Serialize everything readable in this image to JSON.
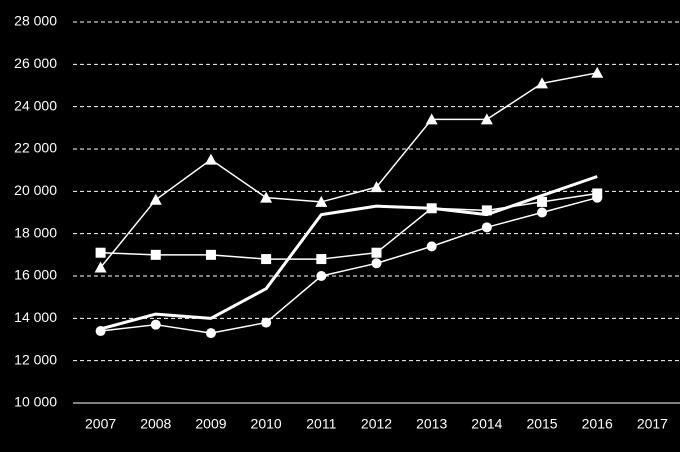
{
  "chart_data": {
    "type": "line",
    "categories": [
      "2007",
      "2008",
      "2009",
      "2010",
      "2011",
      "2012",
      "2013",
      "2014",
      "2015",
      "2016",
      "2017"
    ],
    "series": [
      {
        "color": "#ffffff",
        "marker": "triangle",
        "line_width": 1.5,
        "values": [
          16400,
          19600,
          21500,
          19700,
          19500,
          20200,
          23400,
          23400,
          25100,
          25600,
          null
        ]
      },
      {
        "color": "#ffffff",
        "marker": "square",
        "line_width": 1.5,
        "values": [
          17100,
          17000,
          17000,
          16800,
          16800,
          17100,
          19200,
          19100,
          19500,
          19900,
          null
        ]
      },
      {
        "color": "#ffffff",
        "marker": "circle",
        "line_width": 1.5,
        "values": [
          13400,
          13700,
          13300,
          13800,
          16000,
          16600,
          17400,
          18300,
          19000,
          19700,
          null
        ]
      },
      {
        "color": "#ffffff",
        "marker": "none",
        "line_width": 3,
        "values": [
          13500,
          14200,
          14000,
          15400,
          18900,
          19300,
          19200,
          18900,
          19800,
          20700,
          null
        ]
      }
    ],
    "ylim": [
      10000,
      28000
    ],
    "yticks": [
      {
        "value": 10000,
        "label": "10 000"
      },
      {
        "value": 12000,
        "label": "12 000"
      },
      {
        "value": 14000,
        "label": "14 000"
      },
      {
        "value": 16000,
        "label": "16 000"
      },
      {
        "value": 18000,
        "label": "18 000"
      },
      {
        "value": 20000,
        "label": "20 000"
      },
      {
        "value": 22000,
        "label": "22 000"
      },
      {
        "value": 24000,
        "label": "24 000"
      },
      {
        "value": 26000,
        "label": "26 000"
      },
      {
        "value": 28000,
        "label": "28 000"
      }
    ],
    "grid": true,
    "background": "#000000",
    "text_color": "#ffffff"
  }
}
